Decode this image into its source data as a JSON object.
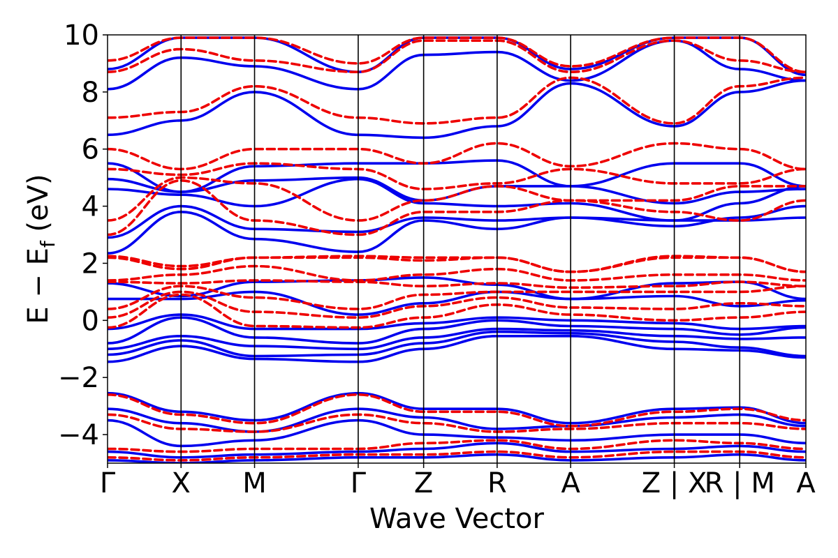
{
  "chart_data": {
    "type": "line",
    "title": "",
    "xlabel": "Wave Vector",
    "ylabel": {
      "prefix": "E − E",
      "subscript": "f",
      "suffix": " (eV)"
    },
    "ylim": [
      -5,
      10
    ],
    "yticks": [
      "−4",
      "−2",
      "0",
      "2",
      "4",
      "6",
      "8",
      "10"
    ],
    "ytick_values": [
      -4,
      -2,
      0,
      2,
      4,
      6,
      8,
      10
    ],
    "kpath": {
      "positions": [
        0.0,
        1.0,
        2.0,
        3.41,
        4.3,
        5.3,
        6.3,
        7.71,
        8.6,
        9.5
      ],
      "labels": [
        "Γ",
        "X",
        "M",
        "Γ",
        "Z",
        "R",
        "A",
        "Z | X",
        "R | M",
        "A"
      ]
    },
    "xlim": [
      0.0,
      9.5
    ],
    "colors": {
      "solid": "#0000ee",
      "dashed": "#ee0000",
      "kline": "#000000"
    },
    "series": [
      {
        "style": "solid",
        "bands": [
          {
            "k": [
              0,
              1,
              2,
              3.41,
              4.3,
              5.3,
              6.3,
              7.71,
              8.6,
              9.5
            ],
            "e": [
              -1.45,
              -0.9,
              -1.35,
              -1.45,
              -1.0,
              -0.55,
              -0.55,
              -1.0,
              -1.05,
              -1.3
            ]
          },
          {
            "k": [
              0,
              1,
              2,
              3.41,
              4.3,
              5.3,
              6.3,
              7.71,
              8.6,
              9.5
            ],
            "e": [
              -1.2,
              -0.7,
              -1.25,
              -1.2,
              -0.8,
              -0.4,
              -0.45,
              -0.75,
              -0.95,
              -1.25
            ]
          },
          {
            "k": [
              0,
              1,
              2,
              3.41,
              4.3,
              5.3,
              6.3,
              7.71,
              8.6,
              9.5
            ],
            "e": [
              -1.0,
              -0.55,
              -0.9,
              -1.0,
              -0.6,
              -0.3,
              -0.35,
              -0.55,
              -0.65,
              -0.6
            ]
          },
          {
            "k": [
              0,
              1,
              2,
              3.41,
              4.3,
              5.3,
              6.3,
              7.71,
              8.6,
              9.5
            ],
            "e": [
              -0.8,
              0.1,
              -0.6,
              -0.8,
              -0.3,
              0.0,
              -0.2,
              -0.3,
              -0.5,
              -0.25
            ]
          },
          {
            "k": [
              0,
              1,
              2,
              3.41,
              4.3,
              5.3,
              6.3,
              7.71,
              8.6,
              9.5
            ],
            "e": [
              -0.3,
              0.2,
              -0.3,
              -0.3,
              -0.1,
              0.1,
              0.0,
              -0.1,
              -0.3,
              -0.2
            ]
          },
          {
            "k": [
              0,
              1,
              2,
              3.41,
              4.3,
              5.3,
              6.3,
              7.71,
              8.6,
              9.5
            ],
            "e": [
              0.75,
              0.75,
              1.0,
              0.2,
              0.6,
              1.0,
              0.75,
              0.85,
              0.5,
              0.7
            ]
          },
          {
            "k": [
              0,
              1,
              2,
              3.41,
              4.3,
              5.3,
              6.3,
              7.71,
              8.6,
              9.5
            ],
            "e": [
              1.3,
              0.85,
              1.35,
              1.4,
              1.5,
              1.25,
              0.75,
              1.3,
              1.35,
              0.75
            ]
          },
          {
            "k": [
              0,
              1,
              2,
              3.41,
              4.3,
              5.3,
              6.3,
              7.71,
              8.6,
              9.5
            ],
            "e": [
              2.35,
              3.8,
              2.85,
              2.4,
              3.5,
              3.2,
              3.6,
              3.5,
              3.5,
              3.6
            ]
          },
          {
            "k": [
              0,
              1,
              2,
              3.41,
              4.3,
              5.3,
              6.3,
              7.71,
              8.6,
              9.5
            ],
            "e": [
              2.9,
              4.0,
              3.2,
              3.1,
              3.6,
              3.5,
              3.6,
              3.3,
              3.6,
              4.0
            ]
          },
          {
            "k": [
              0,
              1,
              2,
              3.41,
              4.3,
              5.3,
              6.3,
              7.71,
              8.6,
              9.5
            ],
            "e": [
              4.6,
              4.4,
              4.0,
              4.95,
              4.1,
              4.0,
              4.1,
              3.5,
              4.1,
              4.7
            ]
          },
          {
            "k": [
              0,
              1,
              2,
              3.41,
              4.3,
              5.3,
              6.3,
              7.71,
              8.6,
              9.5
            ],
            "e": [
              4.95,
              4.5,
              4.9,
              5.0,
              4.2,
              4.7,
              4.7,
              4.1,
              4.5,
              4.6
            ]
          },
          {
            "k": [
              0,
              1,
              2,
              3.41,
              4.3,
              5.3,
              6.3,
              7.71,
              8.6,
              9.5
            ],
            "e": [
              5.5,
              4.5,
              5.4,
              5.5,
              5.5,
              5.6,
              4.7,
              5.5,
              5.5,
              4.7
            ]
          },
          {
            "k": [
              0,
              1,
              2,
              3.41,
              4.3,
              5.3,
              6.3,
              7.71,
              8.6,
              9.5
            ],
            "e": [
              6.5,
              7.0,
              8.0,
              6.5,
              6.4,
              6.8,
              8.3,
              6.8,
              8.0,
              8.4
            ]
          },
          {
            "k": [
              0,
              1,
              2,
              3.41,
              4.3,
              5.3,
              6.3,
              7.71,
              8.6,
              9.5
            ],
            "e": [
              8.1,
              9.2,
              8.9,
              8.1,
              9.3,
              9.4,
              8.4,
              9.8,
              8.8,
              8.4
            ]
          },
          {
            "k": [
              0,
              1,
              2,
              3.41,
              4.3,
              5.3,
              6.3,
              7.71,
              8.6,
              9.5
            ],
            "e": [
              8.8,
              9.9,
              9.9,
              8.7,
              9.9,
              9.9,
              8.8,
              9.9,
              9.9,
              8.6
            ]
          },
          {
            "k": [
              0,
              1,
              2,
              3.41,
              4.3,
              5.3,
              6.3,
              7.71,
              8.6,
              9.5
            ],
            "e": [
              -2.55,
              -3.2,
              -3.5,
              -2.55,
              -3.1,
              -3.1,
              -3.6,
              -3.1,
              -3.05,
              -3.6
            ]
          },
          {
            "k": [
              0,
              1,
              2,
              3.41,
              4.3,
              5.3,
              6.3,
              7.71,
              8.6,
              9.5
            ],
            "e": [
              -3.1,
              -3.6,
              -3.9,
              -3.1,
              -3.4,
              -3.8,
              -3.7,
              -3.4,
              -3.3,
              -3.7
            ]
          },
          {
            "k": [
              0,
              1,
              2,
              3.41,
              4.3,
              5.3,
              6.3,
              7.71,
              8.6,
              9.5
            ],
            "e": [
              -3.5,
              -4.4,
              -4.2,
              -3.5,
              -4.0,
              -4.1,
              -4.2,
              -4.0,
              -4.0,
              -4.3
            ]
          },
          {
            "k": [
              0,
              1,
              2,
              3.41,
              4.3,
              5.3,
              6.3,
              7.71,
              8.6,
              9.5
            ],
            "e": [
              -4.6,
              -4.8,
              -4.7,
              -4.6,
              -4.5,
              -4.3,
              -4.6,
              -4.5,
              -4.4,
              -4.6
            ]
          },
          {
            "k": [
              0,
              1,
              2,
              3.41,
              4.3,
              5.3,
              6.3,
              7.71,
              8.6,
              9.5
            ],
            "e": [
              -4.9,
              -5.0,
              -4.9,
              -4.8,
              -4.8,
              -4.7,
              -4.9,
              -4.8,
              -4.7,
              -4.9
            ]
          }
        ]
      },
      {
        "style": "dashed",
        "bands": [
          {
            "k": [
              0,
              1,
              2,
              3.41,
              4.3,
              5.3,
              6.3,
              7.71,
              8.6,
              9.5
            ],
            "e": [
              -0.25,
              0.9,
              -0.2,
              -0.25,
              0.1,
              0.55,
              0.2,
              0.0,
              0.1,
              0.3
            ]
          },
          {
            "k": [
              0,
              1,
              2,
              3.41,
              4.3,
              5.3,
              6.3,
              7.71,
              8.6,
              9.5
            ],
            "e": [
              0.1,
              1.0,
              0.3,
              0.1,
              0.5,
              0.8,
              0.45,
              0.4,
              0.6,
              0.5
            ]
          },
          {
            "k": [
              0,
              1,
              2,
              3.41,
              4.3,
              5.3,
              6.3,
              7.71,
              8.6,
              9.5
            ],
            "e": [
              0.4,
              1.2,
              0.8,
              0.4,
              0.9,
              1.0,
              1.0,
              1.0,
              1.0,
              1.2
            ]
          },
          {
            "k": [
              0,
              1,
              2,
              3.41,
              4.3,
              5.3,
              6.3,
              7.71,
              8.6,
              9.5
            ],
            "e": [
              1.35,
              1.3,
              1.4,
              1.35,
              1.2,
              1.3,
              1.15,
              1.2,
              1.35,
              1.2
            ]
          },
          {
            "k": [
              0,
              1,
              2,
              3.41,
              4.3,
              5.3,
              6.3,
              7.71,
              8.6,
              9.5
            ],
            "e": [
              1.4,
              1.6,
              1.9,
              1.4,
              1.6,
              1.8,
              1.4,
              1.6,
              1.6,
              1.4
            ]
          },
          {
            "k": [
              0,
              1,
              2,
              3.41,
              4.3,
              5.3,
              6.3,
              7.71,
              8.6,
              9.5
            ],
            "e": [
              2.2,
              1.8,
              2.2,
              2.2,
              2.1,
              2.2,
              1.7,
              2.2,
              2.2,
              1.7
            ]
          },
          {
            "k": [
              0,
              1,
              2,
              3.41,
              4.3,
              5.3,
              6.3,
              7.71,
              8.6,
              9.5
            ],
            "e": [
              2.25,
              1.9,
              2.2,
              2.25,
              2.2,
              2.2,
              1.7,
              2.25,
              2.2,
              1.7
            ]
          },
          {
            "k": [
              0,
              1,
              2,
              3.41,
              4.3,
              5.3,
              6.3,
              7.71,
              8.6,
              9.5
            ],
            "e": [
              3.0,
              4.9,
              3.5,
              3.0,
              3.8,
              3.8,
              4.2,
              3.8,
              3.5,
              4.2
            ]
          },
          {
            "k": [
              0,
              1,
              2,
              3.41,
              4.3,
              5.3,
              6.3,
              7.71,
              8.6,
              9.5
            ],
            "e": [
              3.5,
              5.0,
              4.8,
              3.5,
              4.2,
              4.7,
              4.2,
              4.2,
              4.7,
              4.7
            ]
          },
          {
            "k": [
              0,
              1,
              2,
              3.41,
              4.3,
              5.3,
              6.3,
              7.71,
              8.6,
              9.5
            ],
            "e": [
              5.3,
              5.1,
              5.5,
              5.3,
              4.6,
              4.8,
              5.3,
              4.8,
              4.8,
              5.3
            ]
          },
          {
            "k": [
              0,
              1,
              2,
              3.41,
              4.3,
              5.3,
              6.3,
              7.71,
              8.6,
              9.5
            ],
            "e": [
              6.0,
              5.3,
              6.0,
              6.0,
              5.5,
              6.2,
              5.4,
              6.2,
              6.0,
              5.3
            ]
          },
          {
            "k": [
              0,
              1,
              2,
              3.41,
              4.3,
              5.3,
              6.3,
              7.71,
              8.6,
              9.5
            ],
            "e": [
              7.1,
              7.3,
              8.2,
              7.1,
              6.9,
              7.1,
              8.5,
              6.9,
              8.2,
              8.5
            ]
          },
          {
            "k": [
              0,
              1,
              2,
              3.41,
              4.3,
              5.3,
              6.3,
              7.71,
              8.6,
              9.5
            ],
            "e": [
              8.7,
              9.5,
              9.1,
              8.7,
              9.8,
              9.8,
              8.7,
              9.8,
              9.1,
              8.7
            ]
          },
          {
            "k": [
              0,
              1,
              2,
              3.41,
              4.3,
              5.3,
              6.3,
              7.71,
              8.6,
              9.5
            ],
            "e": [
              9.1,
              9.9,
              9.9,
              9.0,
              9.9,
              9.9,
              8.9,
              9.9,
              9.9,
              8.7
            ]
          },
          {
            "k": [
              0,
              1,
              2,
              3.41,
              4.3,
              5.3,
              6.3,
              7.71,
              8.6,
              9.5
            ],
            "e": [
              -2.6,
              -3.3,
              -3.6,
              -2.6,
              -3.2,
              -3.2,
              -3.7,
              -3.2,
              -3.1,
              -3.5
            ]
          },
          {
            "k": [
              0,
              1,
              2,
              3.41,
              4.3,
              5.3,
              6.3,
              7.71,
              8.6,
              9.5
            ],
            "e": [
              -3.3,
              -3.8,
              -3.9,
              -3.3,
              -3.6,
              -3.9,
              -3.8,
              -3.6,
              -3.6,
              -3.8
            ]
          },
          {
            "k": [
              0,
              1,
              2,
              3.41,
              4.3,
              5.3,
              6.3,
              7.71,
              8.6,
              9.5
            ],
            "e": [
              -4.5,
              -4.6,
              -4.5,
              -4.5,
              -4.3,
              -4.2,
              -4.5,
              -4.2,
              -4.3,
              -4.5
            ]
          },
          {
            "k": [
              0,
              1,
              2,
              3.41,
              4.3,
              5.3,
              6.3,
              7.71,
              8.6,
              9.5
            ],
            "e": [
              -4.8,
              -4.9,
              -4.8,
              -4.7,
              -4.7,
              -4.6,
              -4.8,
              -4.6,
              -4.6,
              -4.8
            ]
          }
        ]
      }
    ]
  }
}
